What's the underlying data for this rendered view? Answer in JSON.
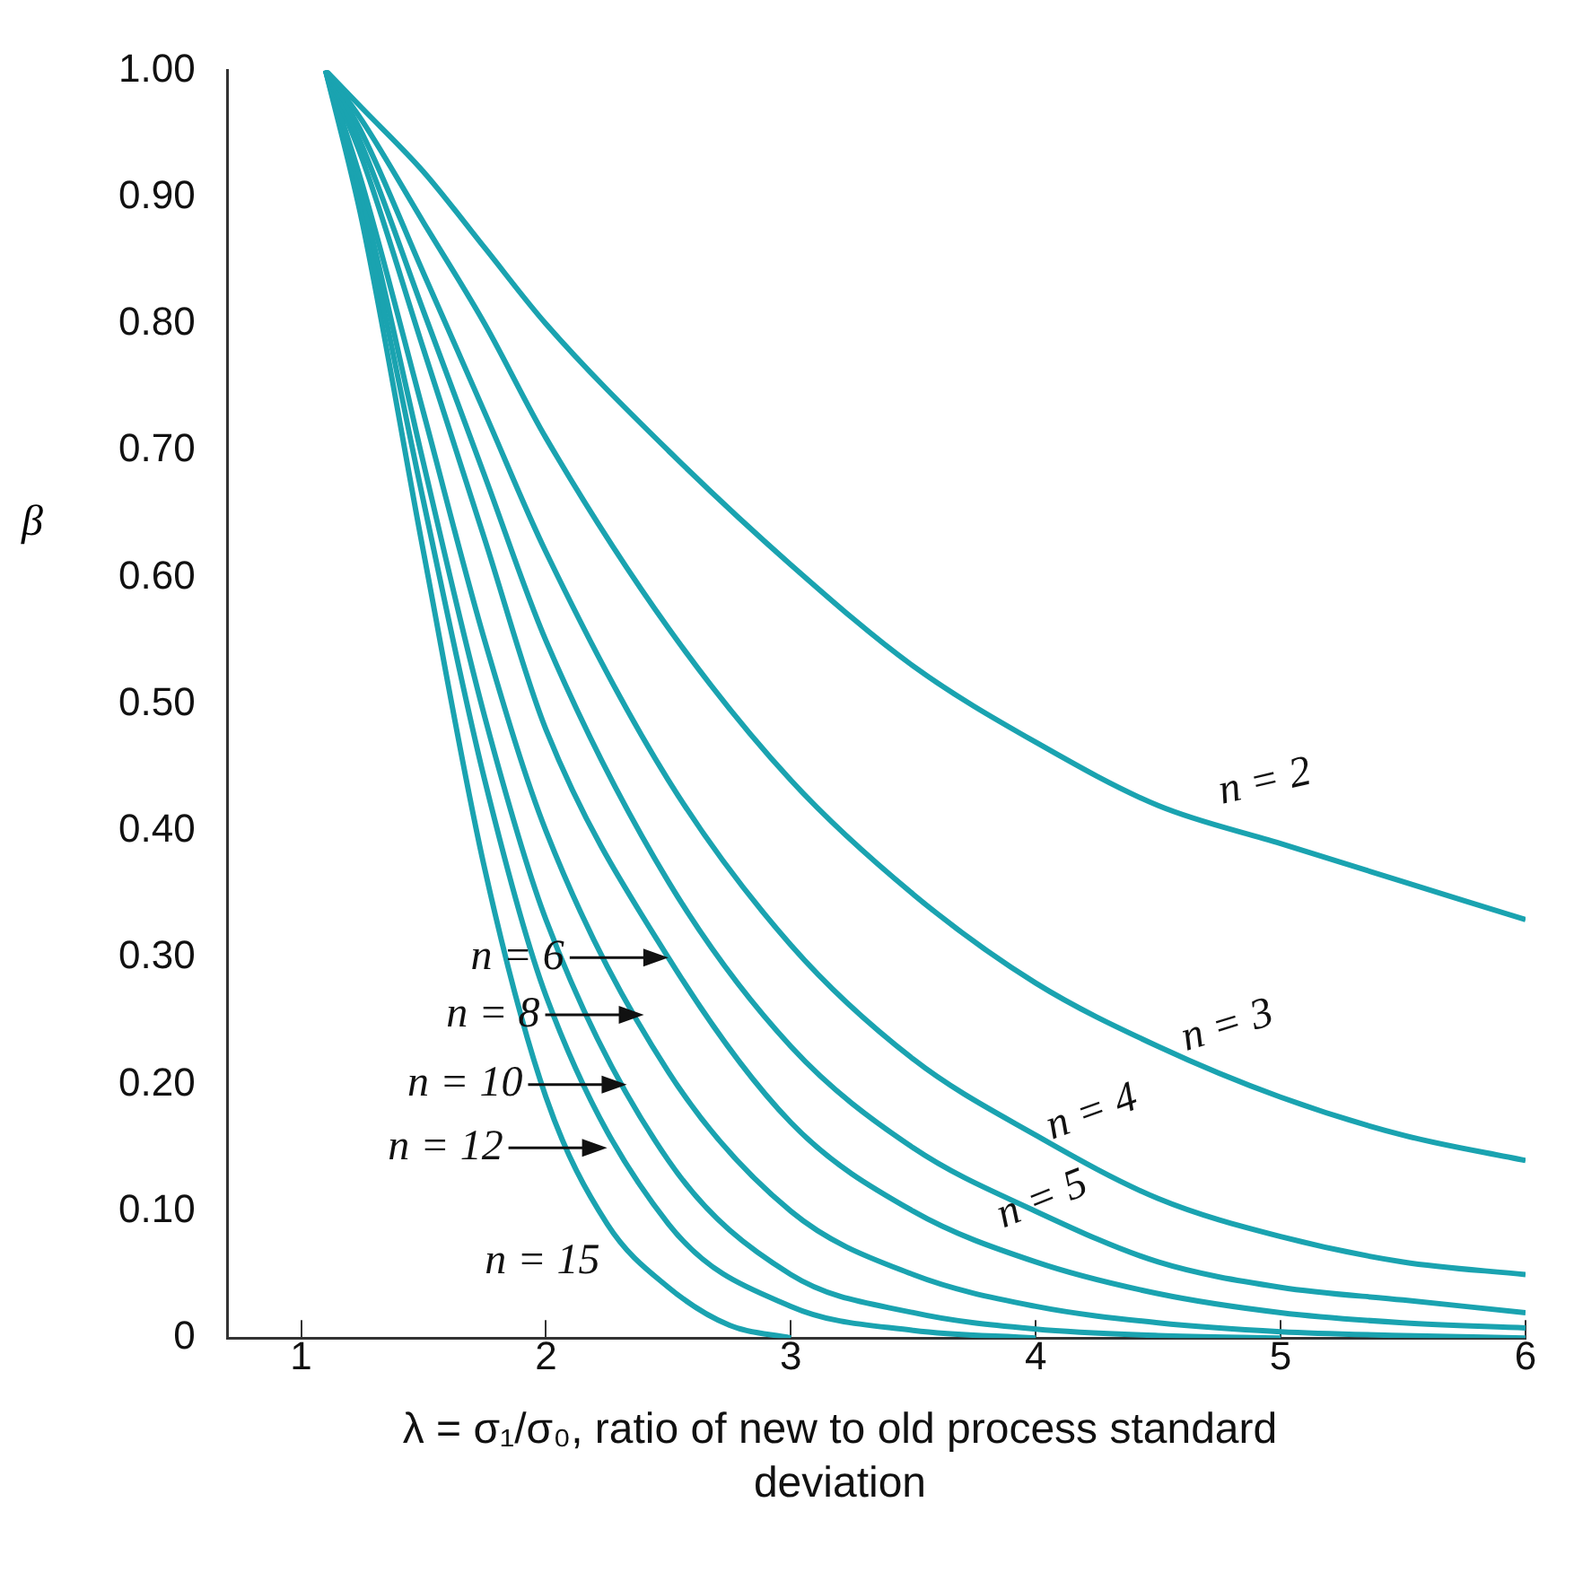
{
  "chart_data": {
    "type": "line",
    "xlabel": "λ = σ₁/σ₀, ratio of new to old process standard deviation",
    "ylabel": "β",
    "xlim": [
      0.7,
      6
    ],
    "xticks": [
      1,
      2,
      3,
      4,
      5,
      6
    ],
    "ylim": [
      0,
      1
    ],
    "yticks": [
      0,
      {
        "value": 0.1,
        "label": "0.10"
      },
      {
        "value": 0.2,
        "label": "0.20"
      },
      {
        "value": 0.3,
        "label": "0.30"
      },
      {
        "value": 0.4,
        "label": "0.40"
      },
      {
        "value": 0.5,
        "label": "0.50"
      },
      {
        "value": 0.6,
        "label": "0.60"
      },
      {
        "value": 0.7,
        "label": "0.70"
      },
      {
        "value": 0.8,
        "label": "0.80"
      },
      {
        "value": 0.9,
        "label": "0.90"
      },
      {
        "value": 1,
        "label": "1.00"
      }
    ],
    "annotations": [
      {
        "text": "n = 6",
        "x": 2.5,
        "y": 0.3
      },
      {
        "text": "n = 8",
        "x": 2.4,
        "y": 0.255
      },
      {
        "text": "n = 10",
        "x": 2.33,
        "y": 0.2
      },
      {
        "text": "n = 12",
        "x": 2.25,
        "y": 0.15
      }
    ],
    "grid": false,
    "legend": false,
    "marker": "none",
    "line_style": "solid",
    "x": [
      1.1,
      1.25,
      1.5,
      1.75,
      2,
      2.5,
      3,
      3.5,
      4,
      4.5,
      5,
      5.5,
      6
    ],
    "series": [
      {
        "name": "n = 2",
        "color": "#1aa3b0",
        "values": [
          1,
          0.97,
          0.92,
          0.86,
          0.8,
          0.7,
          0.61,
          0.53,
          0.47,
          0.42,
          0.39,
          0.36,
          0.33
        ]
      },
      {
        "name": "n = 3",
        "color": "#1aa3b0",
        "values": [
          1,
          0.96,
          0.88,
          0.8,
          0.71,
          0.56,
          0.44,
          0.35,
          0.28,
          0.23,
          0.19,
          0.16,
          0.14
        ]
      },
      {
        "name": "n = 4",
        "color": "#1aa3b0",
        "values": [
          1,
          0.95,
          0.84,
          0.73,
          0.62,
          0.44,
          0.31,
          0.22,
          0.16,
          0.11,
          0.08,
          0.06,
          0.05
        ]
      },
      {
        "name": "n = 5",
        "color": "#1aa3b0",
        "values": [
          1,
          0.94,
          0.81,
          0.68,
          0.55,
          0.36,
          0.23,
          0.15,
          0.1,
          0.06,
          0.04,
          0.03,
          0.02
        ]
      },
      {
        "color": "#1aa3b0",
        "values": [
          1,
          0.93,
          0.78,
          0.63,
          0.48,
          0.3,
          0.17,
          0.1,
          0.06,
          0.035,
          0.02,
          0.012,
          0.008
        ]
      },
      {
        "color": "#1aa3b0",
        "values": [
          1,
          0.91,
          0.73,
          0.55,
          0.4,
          0.21,
          0.1,
          0.05,
          0.025,
          0.012,
          0.005,
          0.002,
          0
        ]
      },
      {
        "color": "#1aa3b0",
        "values": [
          1,
          0.9,
          0.69,
          0.49,
          0.33,
          0.14,
          0.05,
          0.02,
          0.007,
          0.002,
          0,
          null,
          null
        ]
      },
      {
        "color": "#1aa3b0",
        "values": [
          1,
          0.89,
          0.66,
          0.44,
          0.27,
          0.09,
          0.025,
          0.006,
          0,
          null,
          null,
          null,
          null
        ]
      },
      {
        "name": "n = 15",
        "color": "#1aa3b0",
        "x": [
          1.1,
          1.25,
          1.5,
          1.75,
          2,
          2.25,
          2.5,
          2.75,
          3
        ],
        "values": [
          1,
          0.88,
          0.62,
          0.37,
          0.19,
          0.09,
          0.04,
          0.01,
          0
        ]
      }
    ]
  }
}
